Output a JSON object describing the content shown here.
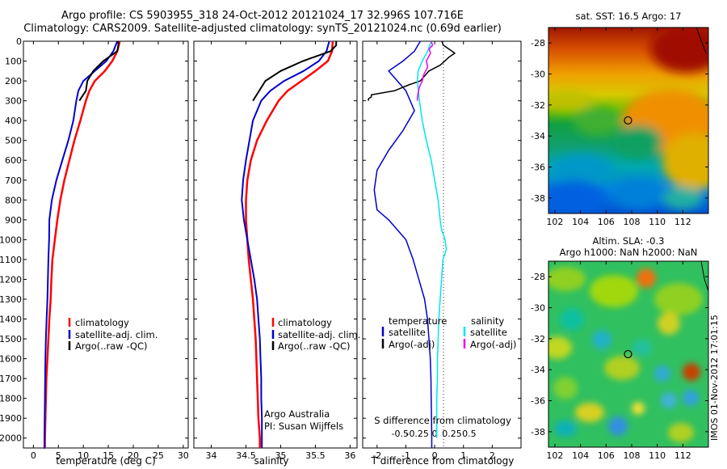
{
  "header": {
    "title_line1": "Argo profile: CS 5903955_318 24-Oct-2012 20121024_17 32.996S 107.716E",
    "title_line2": "Climatology: CARS2009. Satellite-adjusted climatology: synTS_20121024.nc (0.69d earlier)"
  },
  "stamp": "IMOS 01-Nov-2012 17:01:15",
  "colors": {
    "climatology": "#ff0000",
    "satellite_adj": "#0000cc",
    "argo": "#000000",
    "salinity_sat": "#00e5ee",
    "salinity_argo": "#ee00ee"
  },
  "chart_data": [
    {
      "type": "line",
      "id": "temperature",
      "xlabel": "temperature (deg C)",
      "xlim": [
        -2,
        31
      ],
      "ylim": [
        0,
        2050
      ],
      "xticks": [
        0,
        5,
        10,
        15,
        20,
        25,
        30
      ],
      "yticks": [
        0,
        100,
        200,
        300,
        400,
        500,
        600,
        700,
        800,
        900,
        1000,
        1100,
        1200,
        1300,
        1400,
        1500,
        1600,
        1700,
        1800,
        1900,
        2000
      ],
      "y_reversed": true,
      "legend": [
        "climatology",
        "satellite-adj. clim.",
        "Argo(..raw -QC)"
      ],
      "series": [
        {
          "name": "climatology",
          "color": "#ff0000",
          "width": 2.5,
          "x": [
            17.3,
            16.8,
            15.8,
            14.3,
            12.3,
            11.2,
            10.5,
            9.4,
            8.2,
            7.2,
            6.2,
            5.4,
            4.8,
            4.3,
            3.8,
            3.6,
            3.45,
            3.2,
            3.0,
            2.8,
            2.6,
            2.5,
            2.4,
            2.3,
            2.3
          ],
          "y": [
            0,
            50,
            100,
            150,
            200,
            250,
            300,
            400,
            500,
            600,
            700,
            800,
            900,
            1000,
            1100,
            1200,
            1300,
            1400,
            1500,
            1600,
            1700,
            1800,
            1900,
            2000,
            2050
          ]
        },
        {
          "name": "satellite-adj. clim.",
          "color": "#0000cc",
          "width": 2,
          "x": [
            16.8,
            16.0,
            14.6,
            12.3,
            10.0,
            9.0,
            8.6,
            8.0,
            7.0,
            5.8,
            4.6,
            3.7,
            3.2,
            3.15,
            3.0,
            2.9,
            2.8,
            2.65,
            2.5,
            2.4,
            2.35,
            2.3,
            2.25,
            2.2,
            2.2,
            2.15,
            2.1
          ],
          "y": [
            0,
            50,
            100,
            150,
            200,
            250,
            300,
            400,
            500,
            600,
            700,
            800,
            900,
            1000,
            1100,
            1200,
            1300,
            1400,
            1500,
            1600,
            1700,
            1800,
            1900,
            2000,
            2050,
            2050,
            2050
          ]
        },
        {
          "name": "Argo(..raw -QC)",
          "color": "#000000",
          "width": 2,
          "x": [
            17.0,
            17.0,
            16.8,
            14.0,
            12.0,
            10.8,
            10.5,
            9.2
          ],
          "y": [
            0,
            20,
            50,
            100,
            150,
            200,
            250,
            300
          ]
        }
      ]
    },
    {
      "type": "line",
      "id": "salinity",
      "xlabel": "salinity",
      "xlim": [
        33.75,
        36.1
      ],
      "ylim": [
        0,
        2050
      ],
      "xticks": [
        34,
        34.5,
        35,
        35.5,
        36
      ],
      "xticklabels": [
        "34",
        "34.5",
        "35",
        "35.5",
        "36"
      ],
      "y_reversed": true,
      "legend": [
        "climatology",
        "satellite-adj. clim.",
        "Argo(..raw -QC)"
      ],
      "annotation": [
        "Argo Australia",
        "PI: Susan Wijffels"
      ],
      "series": [
        {
          "name": "climatology",
          "color": "#ff0000",
          "width": 2.5,
          "x": [
            35.75,
            35.74,
            35.68,
            35.5,
            35.3,
            35.1,
            34.97,
            34.8,
            34.66,
            34.57,
            34.52,
            34.5,
            34.5,
            34.52,
            34.54,
            34.57,
            34.6,
            34.62,
            34.64,
            34.65,
            34.66,
            34.67,
            34.68,
            34.7,
            34.7
          ],
          "y": [
            0,
            50,
            100,
            150,
            200,
            250,
            300,
            400,
            500,
            600,
            700,
            800,
            900,
            1000,
            1100,
            1200,
            1300,
            1400,
            1500,
            1600,
            1700,
            1800,
            1900,
            2000,
            2050
          ]
        },
        {
          "name": "satellite-adj. clim.",
          "color": "#0000cc",
          "width": 2,
          "x": [
            35.7,
            35.66,
            35.55,
            35.33,
            35.05,
            34.85,
            34.72,
            34.6,
            34.55,
            34.5,
            34.46,
            34.44,
            34.47,
            34.52,
            34.57,
            34.62,
            34.66,
            34.68,
            34.7,
            34.71,
            34.72,
            34.72,
            34.73,
            34.73,
            34.73
          ],
          "y": [
            0,
            50,
            100,
            150,
            200,
            250,
            300,
            400,
            500,
            600,
            700,
            800,
            900,
            1000,
            1100,
            1200,
            1300,
            1400,
            1500,
            1600,
            1700,
            1800,
            1900,
            2000,
            2050
          ]
        },
        {
          "name": "Argo(..raw -QC)",
          "color": "#000000",
          "width": 2,
          "x": [
            35.8,
            35.8,
            35.72,
            35.32,
            35.0,
            34.78,
            34.6
          ],
          "y": [
            0,
            20,
            50,
            100,
            150,
            200,
            300
          ]
        }
      ]
    },
    {
      "type": "line",
      "id": "difference",
      "xlabel": "T difference from climatology",
      "xlabel_top": "S difference from climatology",
      "xlim": [
        -2.5,
        3.0
      ],
      "ylim": [
        0,
        2050
      ],
      "xticks": [
        -2,
        -1,
        0,
        1,
        2
      ],
      "xticklabels": [
        "-2",
        "-1",
        "0",
        "1",
        "2"
      ],
      "sticks": [
        -0.5,
        -0.25,
        0,
        0.25,
        0.5
      ],
      "sticklabels": [
        "-0.5",
        "-0.25",
        "0",
        "0.25",
        "0.5"
      ],
      "y_reversed": true,
      "legend_temperature_heading": "temperature",
      "legend_salinity_heading": "salinity",
      "legend_temperature": [
        "satellite",
        "Argo(-adj)"
      ],
      "legend_salinity": [
        "satellite",
        "Argo(-adj)"
      ],
      "series": [
        {
          "name": "satellite",
          "color": "#0000cc",
          "width": 1.5,
          "x": [
            -0.5,
            -0.7,
            -1.1,
            -1.6,
            -1.0,
            -0.7,
            -1.1,
            -1.6,
            -2.0,
            -2.1,
            -2.0,
            -1.6,
            -1.3,
            -1.0,
            -0.75,
            -0.55,
            -0.35,
            -0.25,
            -0.2,
            -0.15,
            -0.13,
            -0.12,
            -0.11,
            -0.1,
            -0.1,
            -0.1
          ],
          "y": [
            0,
            50,
            100,
            150,
            250,
            350,
            450,
            550,
            650,
            750,
            850,
            900,
            950,
            1000,
            1100,
            1200,
            1300,
            1400,
            1500,
            1600,
            1700,
            1800,
            1900,
            2000,
            2030,
            2050
          ]
        },
        {
          "name": "Argo(-adj)",
          "color": "#000000",
          "width": 1.5,
          "x": [
            0.25,
            0.3,
            0.5,
            0.7,
            0.5,
            0.2,
            -0.2,
            -0.5,
            -0.9,
            -1.4,
            -1.8,
            -2.2,
            -2.2,
            -2.3,
            -2.3
          ],
          "y": [
            0,
            20,
            40,
            60,
            80,
            120,
            150,
            200,
            220,
            250,
            260,
            270,
            280,
            290,
            300
          ]
        },
        {
          "name": "satellite",
          "color": "#00e5ee",
          "width": 1.5,
          "scale": "salinity",
          "x": [
            -0.05,
            -0.1,
            -0.18,
            -0.24,
            -0.25,
            -0.22,
            -0.18,
            -0.12,
            -0.05,
            0.0,
            0.05,
            0.08,
            0.1,
            0.15,
            0.17,
            0.12,
            0.1,
            0.08,
            0.06,
            0.05,
            0.04,
            0.04,
            0.03,
            0.03,
            0.03
          ],
          "y": [
            0,
            50,
            100,
            150,
            200,
            300,
            400,
            500,
            600,
            700,
            800,
            900,
            950,
            1000,
            1050,
            1100,
            1200,
            1300,
            1400,
            1500,
            1600,
            1700,
            1800,
            1900,
            2000
          ]
        },
        {
          "name": "Argo(-adj)",
          "color": "#ee00ee",
          "width": 1.5,
          "scale": "salinity",
          "x": [
            -0.05,
            -0.03,
            -0.08,
            -0.06,
            -0.12,
            -0.1,
            -0.16,
            -0.18,
            -0.22,
            -0.24,
            -0.25,
            -0.25
          ],
          "y": [
            0,
            20,
            40,
            60,
            100,
            130,
            170,
            200,
            230,
            260,
            290,
            300
          ]
        }
      ]
    },
    {
      "type": "heatmap",
      "id": "sst_map",
      "title": "sat. SST: 16.5  Argo: 17",
      "xlim": [
        101.5,
        114.0
      ],
      "ylim": [
        -39.0,
        -27.0
      ],
      "xticks": [
        102,
        104,
        106,
        108,
        110,
        112
      ],
      "yticks": [
        -28,
        -30,
        -32,
        -34,
        -36,
        -38
      ],
      "marker": {
        "lon": 107.716,
        "lat": -32.996
      }
    },
    {
      "type": "heatmap",
      "id": "sla_map",
      "title_line1": "Altim. SLA: -0.3",
      "title_line2": "Argo h1000: NaN h2000: NaN",
      "xlim": [
        101.5,
        114.0
      ],
      "ylim": [
        -39.0,
        -27.0
      ],
      "xticks": [
        102,
        104,
        106,
        108,
        110,
        112
      ],
      "yticks": [
        -28,
        -30,
        -32,
        -34,
        -36,
        -38
      ],
      "marker": {
        "lon": 107.716,
        "lat": -32.996
      }
    }
  ]
}
